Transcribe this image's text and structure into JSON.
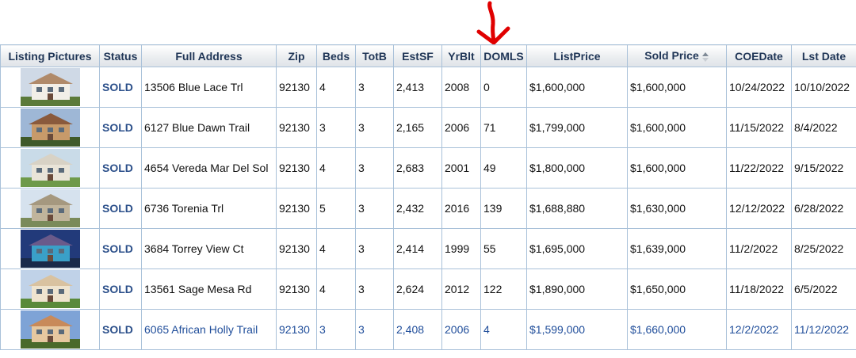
{
  "columns": [
    {
      "key": "pic",
      "label": "Listing Pictures"
    },
    {
      "key": "status",
      "label": "Status"
    },
    {
      "key": "address",
      "label": "Full Address"
    },
    {
      "key": "zip",
      "label": "Zip"
    },
    {
      "key": "beds",
      "label": "Beds"
    },
    {
      "key": "totb",
      "label": "TotB"
    },
    {
      "key": "estsf",
      "label": "EstSF"
    },
    {
      "key": "yrblt",
      "label": "YrBlt"
    },
    {
      "key": "domls",
      "label": "DOMLS"
    },
    {
      "key": "listprice",
      "label": "ListPrice"
    },
    {
      "key": "soldprice",
      "label": "Sold Price"
    },
    {
      "key": "coedate",
      "label": "COEDate"
    },
    {
      "key": "lstdate",
      "label": "Lst Date"
    }
  ],
  "sort": {
    "column": "Sold Price",
    "direction": "ascending",
    "icon": "sort-up-down-icon"
  },
  "annotation": {
    "icon": "red-down-arrow-icon",
    "color": "#e00000",
    "target_column": "DOMLS"
  },
  "rows": [
    {
      "photo": "house-photo-1",
      "status": "SOLD",
      "address": "13506 Blue Lace Trl",
      "zip": "92130",
      "beds": "4",
      "totb": "3",
      "estsf": "2,413",
      "yrblt": "2008",
      "domls": "0",
      "listprice": "$1,600,000",
      "soldprice": "$1,600,000",
      "coedate": "10/24/2022",
      "lstdate": "10/10/2022"
    },
    {
      "photo": "house-photo-2",
      "status": "SOLD",
      "address": "6127 Blue Dawn Trail",
      "zip": "92130",
      "beds": "3",
      "totb": "3",
      "estsf": "2,165",
      "yrblt": "2006",
      "domls": "71",
      "listprice": "$1,799,000",
      "soldprice": "$1,600,000",
      "coedate": "11/15/2022",
      "lstdate": "8/4/2022"
    },
    {
      "photo": "house-photo-3",
      "status": "SOLD",
      "address": "4654 Vereda Mar Del Sol",
      "zip": "92130",
      "beds": "4",
      "totb": "3",
      "estsf": "2,683",
      "yrblt": "2001",
      "domls": "49",
      "listprice": "$1,800,000",
      "soldprice": "$1,600,000",
      "coedate": "11/22/2022",
      "lstdate": "9/15/2022"
    },
    {
      "photo": "house-photo-4",
      "status": "SOLD",
      "address": "6736  Torenia Trl",
      "zip": "92130",
      "beds": "5",
      "totb": "3",
      "estsf": "2,432",
      "yrblt": "2016",
      "domls": "139",
      "listprice": "$1,688,880",
      "soldprice": "$1,630,000",
      "coedate": "12/12/2022",
      "lstdate": "6/28/2022"
    },
    {
      "photo": "house-photo-5",
      "status": "SOLD",
      "address": "3684 Torrey View Ct",
      "zip": "92130",
      "beds": "4",
      "totb": "3",
      "estsf": "2,414",
      "yrblt": "1999",
      "domls": "55",
      "listprice": "$1,695,000",
      "soldprice": "$1,639,000",
      "coedate": "11/2/2022",
      "lstdate": "8/25/2022"
    },
    {
      "photo": "house-photo-6",
      "status": "SOLD",
      "address": "13561 Sage Mesa Rd",
      "zip": "92130",
      "beds": "4",
      "totb": "3",
      "estsf": "2,624",
      "yrblt": "2012",
      "domls": "122",
      "listprice": "$1,890,000",
      "soldprice": "$1,650,000",
      "coedate": "11/18/2022",
      "lstdate": "6/5/2022"
    },
    {
      "photo": "house-photo-7",
      "status": "SOLD",
      "address": "6065 African Holly Trail",
      "zip": "92130",
      "beds": "3",
      "totb": "3",
      "estsf": "2,408",
      "yrblt": "2006",
      "domls": "4",
      "listprice": "$1,599,000",
      "soldprice": "$1,660,000",
      "coedate": "12/2/2022",
      "lstdate": "11/12/2022"
    }
  ]
}
